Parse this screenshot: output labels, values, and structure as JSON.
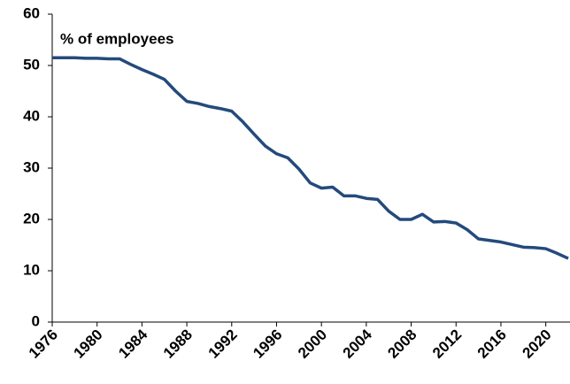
{
  "chart_data": {
    "type": "line",
    "annotation": "% of employees",
    "x": [
      1976,
      1977,
      1978,
      1979,
      1980,
      1981,
      1982,
      1983,
      1984,
      1985,
      1986,
      1987,
      1988,
      1989,
      1990,
      1991,
      1992,
      1993,
      1994,
      1995,
      1996,
      1997,
      1998,
      1999,
      2000,
      2001,
      2002,
      2003,
      2004,
      2005,
      2006,
      2007,
      2008,
      2009,
      2010,
      2011,
      2012,
      2013,
      2014,
      2015,
      2016,
      2017,
      2018,
      2019,
      2020,
      2021,
      2022
    ],
    "series": [
      {
        "name": "% of employees",
        "color": "#244a7c",
        "values": [
          51.5,
          51.5,
          51.5,
          51.4,
          51.4,
          51.3,
          51.3,
          50.2,
          49.2,
          48.3,
          47.3,
          45.0,
          43.0,
          42.6,
          42.0,
          41.6,
          41.1,
          39.0,
          36.6,
          34.3,
          32.8,
          32.0,
          29.8,
          27.1,
          26.1,
          26.3,
          24.6,
          24.6,
          24.1,
          23.9,
          21.6,
          20.0,
          20.0,
          21.0,
          19.5,
          19.6,
          19.3,
          18.0,
          16.2,
          15.9,
          15.6,
          15.1,
          14.6,
          14.5,
          14.3,
          13.4,
          12.4
        ]
      }
    ],
    "xlim": [
      1976,
      2022
    ],
    "xticks": [
      1976,
      1980,
      1984,
      1988,
      1992,
      1996,
      2000,
      2004,
      2008,
      2012,
      2016,
      2020
    ],
    "ylim": [
      0,
      60
    ],
    "yticks": [
      0,
      10,
      20,
      30,
      40,
      50,
      60
    ],
    "grid": false
  }
}
